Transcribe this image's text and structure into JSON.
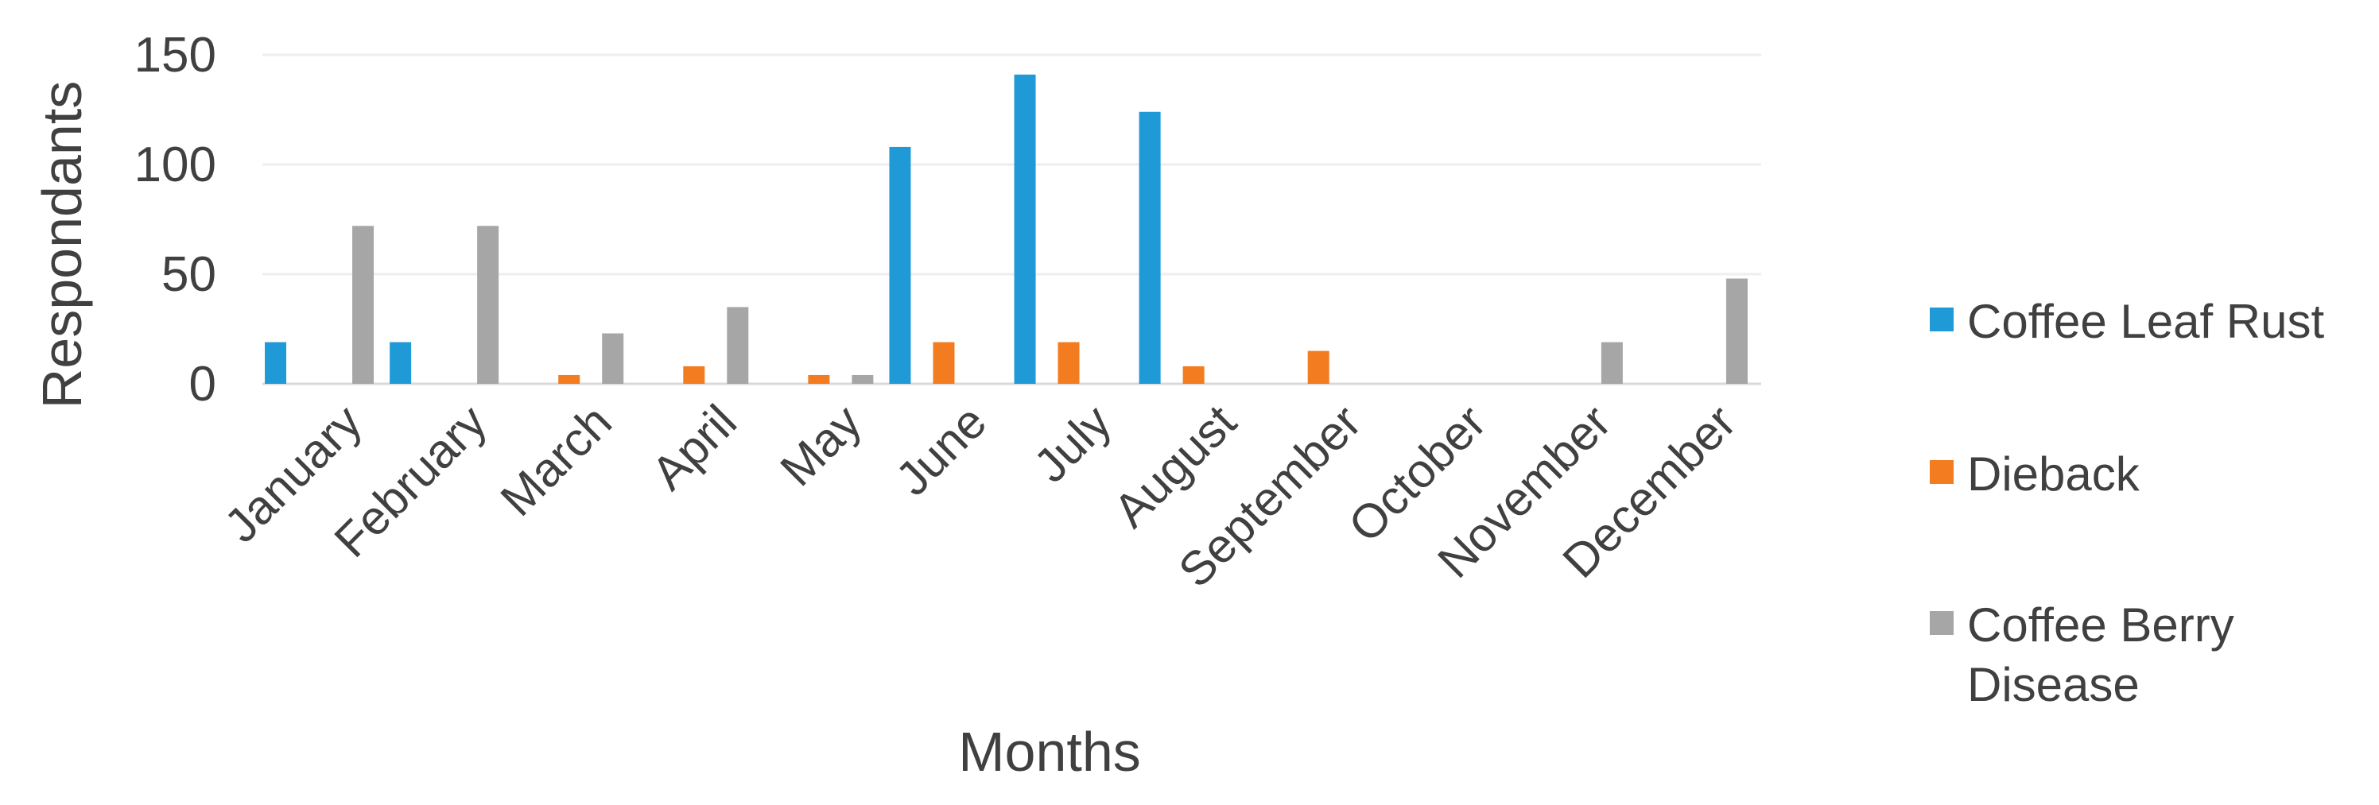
{
  "chart_data": {
    "type": "bar",
    "categories": [
      "January",
      "February",
      "March",
      "April",
      "May",
      "June",
      "July",
      "August",
      "September",
      "October",
      "November",
      "December"
    ],
    "series": [
      {
        "name": "Coffee Leaf Rust",
        "color": "#1f9ad6",
        "values": [
          19,
          19,
          0,
          0,
          0,
          108,
          141,
          124,
          0,
          0,
          0,
          0
        ]
      },
      {
        "name": "Dieback",
        "color": "#f47c20",
        "values": [
          0,
          0,
          4,
          8,
          4,
          19,
          19,
          8,
          15,
          0,
          0,
          0
        ]
      },
      {
        "name": "Coffee Berry Disease",
        "color": "#a6a6a6",
        "values": [
          72,
          72,
          23,
          35,
          4,
          0,
          0,
          0,
          0,
          0,
          19,
          48
        ]
      }
    ],
    "xlabel": "Months",
    "ylabel": "Respondants",
    "ylim": [
      0,
      150
    ],
    "yticks": [
      0,
      50,
      100,
      150
    ],
    "grid": true,
    "legend_position": "right"
  }
}
